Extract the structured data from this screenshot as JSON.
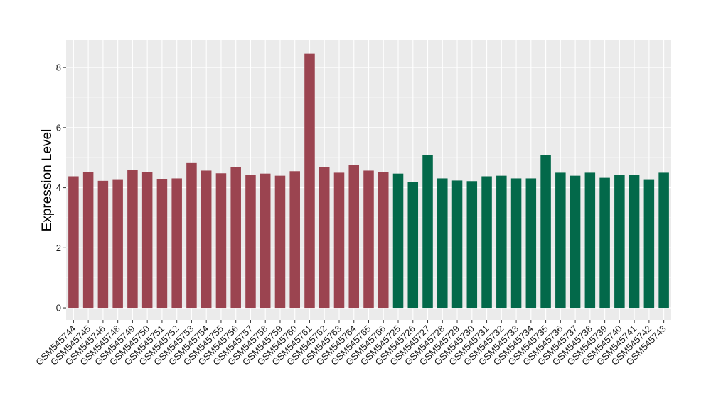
{
  "chart_data": {
    "type": "bar",
    "ylabel": "Expression Level",
    "xlabel": "",
    "ylim": [
      -0.4,
      8.9
    ],
    "y_ticks": [
      0,
      2,
      4,
      6,
      8
    ],
    "y_tick_labels": [
      "0",
      "2",
      "4",
      "6",
      "8"
    ],
    "grid": true,
    "background": "#EBEBEB",
    "categories": [
      "GSM545744",
      "GSM545745",
      "GSM545746",
      "GSM545748",
      "GSM545749",
      "GSM545750",
      "GSM545751",
      "GSM545752",
      "GSM545753",
      "GSM545754",
      "GSM545755",
      "GSM545756",
      "GSM545757",
      "GSM545758",
      "GSM545759",
      "GSM545760",
      "GSM545761",
      "GSM545762",
      "GSM545763",
      "GSM545764",
      "GSM545765",
      "GSM545766",
      "GSM545725",
      "GSM545726",
      "GSM545727",
      "GSM545728",
      "GSM545729",
      "GSM545730",
      "GSM545731",
      "GSM545732",
      "GSM545733",
      "GSM545734",
      "GSM545735",
      "GSM545736",
      "GSM545737",
      "GSM545738",
      "GSM545739",
      "GSM545740",
      "GSM545741",
      "GSM545742",
      "GSM545743"
    ],
    "values": [
      4.38,
      4.52,
      4.23,
      4.26,
      4.59,
      4.52,
      4.29,
      4.31,
      4.82,
      4.57,
      4.48,
      4.69,
      4.43,
      4.47,
      4.4,
      4.55,
      8.46,
      4.69,
      4.5,
      4.75,
      4.57,
      4.52,
      4.47,
      4.19,
      5.09,
      4.31,
      4.24,
      4.22,
      4.38,
      4.4,
      4.31,
      4.31,
      5.09,
      4.5,
      4.4,
      4.5,
      4.33,
      4.42,
      4.43,
      4.26,
      4.5
    ],
    "groups": [
      {
        "color": "#9B4450",
        "start": 0,
        "count": 22
      },
      {
        "color": "#03694A",
        "start": 22,
        "count": 19
      }
    ]
  }
}
